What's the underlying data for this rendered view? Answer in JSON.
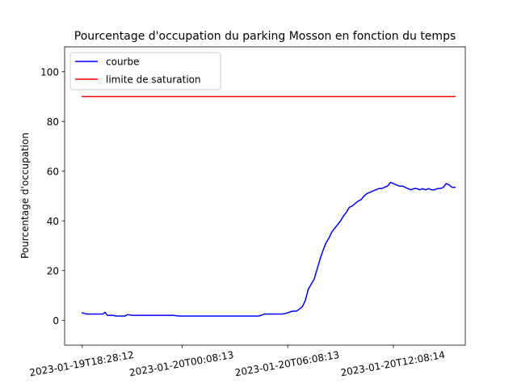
{
  "chart_data": {
    "type": "line",
    "title": "Pourcentage d'occupation du parking Mosson en fonction du temps",
    "xlabel": "",
    "ylabel": "Pourcentage d'occupation",
    "ylim": [
      -10,
      110
    ],
    "y_ticks": [
      0,
      20,
      40,
      60,
      80,
      100
    ],
    "x_ticks": [
      {
        "value": 0,
        "label": "2023-01-19T18:28:12"
      },
      {
        "value": 340,
        "label": "2023-01-20T00:08:13"
      },
      {
        "value": 700,
        "label": "2023-01-20T06:08:13"
      },
      {
        "value": 1060,
        "label": "2023-01-20T12:08:14"
      }
    ],
    "xlim": [
      -60,
      1305
    ],
    "legend_position": "upper left",
    "grid": false,
    "series": [
      {
        "name": "courbe",
        "color": "#0000ff",
        "x": [
          0,
          15,
          30,
          40,
          60,
          70,
          78,
          85,
          95,
          105,
          115,
          125,
          135,
          145,
          155,
          170,
          190,
          210,
          230,
          250,
          270,
          290,
          310,
          330,
          340,
          360,
          380,
          400,
          420,
          440,
          460,
          480,
          500,
          520,
          540,
          560,
          580,
          600,
          610,
          620,
          640,
          660,
          680,
          690,
          700,
          710,
          720,
          730,
          740,
          750,
          760,
          770,
          780,
          790,
          800,
          810,
          820,
          830,
          840,
          850,
          860,
          870,
          880,
          890,
          900,
          910,
          920,
          930,
          940,
          950,
          960,
          970,
          980,
          990,
          1000,
          1010,
          1020,
          1030,
          1040,
          1050,
          1060,
          1070,
          1080,
          1090,
          1100,
          1110,
          1120,
          1130,
          1140,
          1150,
          1160,
          1170,
          1180,
          1190,
          1200,
          1210,
          1220,
          1230,
          1240,
          1250,
          1260,
          1270
        ],
        "y": [
          3.0,
          2.5,
          2.5,
          2.5,
          2.5,
          2.5,
          3.2,
          2.0,
          2.0,
          2.0,
          1.7,
          1.7,
          1.7,
          1.7,
          2.3,
          2.0,
          2.0,
          2.0,
          2.0,
          2.0,
          2.0,
          2.0,
          2.0,
          1.7,
          1.7,
          1.7,
          1.7,
          1.7,
          1.7,
          1.7,
          1.7,
          1.7,
          1.7,
          1.7,
          1.7,
          1.7,
          1.7,
          1.7,
          2.0,
          2.5,
          2.5,
          2.5,
          2.5,
          2.7,
          3.0,
          3.5,
          3.7,
          3.7,
          4.5,
          5.5,
          8.0,
          12.5,
          14.5,
          16.5,
          20.5,
          24.5,
          28.0,
          31.0,
          33.0,
          35.5,
          37.0,
          38.5,
          40.0,
          42.0,
          43.5,
          45.5,
          46.0,
          47.0,
          48.0,
          48.5,
          50.0,
          51.0,
          51.5,
          52.0,
          52.5,
          53.0,
          53.0,
          53.5,
          54.0,
          55.5,
          55.0,
          54.5,
          54.0,
          54.0,
          53.5,
          53.0,
          52.5,
          53.0,
          53.0,
          52.5,
          53.0,
          52.5,
          53.0,
          52.5,
          52.5,
          53.0,
          53.0,
          53.5,
          55.0,
          54.5,
          53.5,
          53.5
        ]
      },
      {
        "name": "limite de saturation",
        "color": "#ff0000",
        "x": [
          0,
          1270
        ],
        "y": [
          90,
          90
        ]
      }
    ]
  }
}
